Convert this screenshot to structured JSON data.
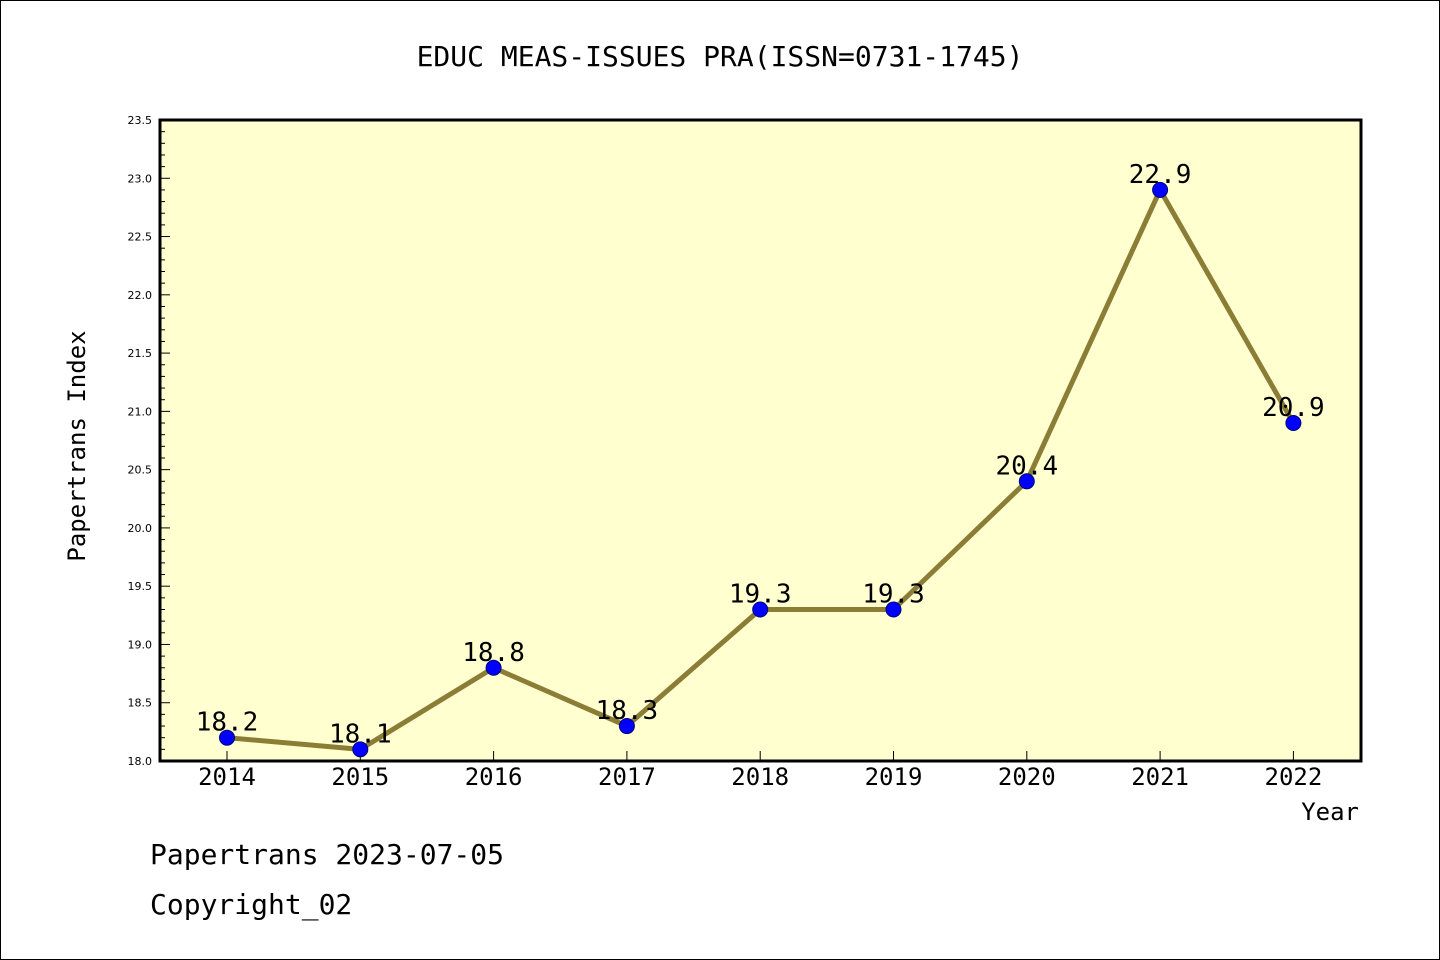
{
  "chart_data": {
    "type": "line",
    "title": "EDUC MEAS-ISSUES PRA(ISSN=0731-1745)",
    "xlabel": "Year",
    "ylabel": "Papertrans Index",
    "ylim": [
      18.0,
      23.5
    ],
    "yticks": [
      "18.0",
      "18.5",
      "19.0",
      "19.5",
      "20.0",
      "20.5",
      "21.0",
      "21.5",
      "22.0",
      "22.5",
      "23.0",
      "23.5"
    ],
    "categories": [
      "2014",
      "2015",
      "2016",
      "2017",
      "2018",
      "2019",
      "2020",
      "2021",
      "2022"
    ],
    "values": [
      18.2,
      18.1,
      18.8,
      18.3,
      19.3,
      19.3,
      20.4,
      22.9,
      20.9
    ],
    "data_labels": [
      "18.2",
      "18.1",
      "18.8",
      "18.3",
      "19.3",
      "19.3",
      "20.4",
      "22.9",
      "20.9"
    ],
    "grid": false,
    "colors": {
      "plot_background": "#ffffd0",
      "line": "#8b7d35",
      "marker": "#0000ff"
    }
  },
  "footer": {
    "line1": "Papertrans 2023-07-05",
    "line2": "Copyright_02"
  }
}
